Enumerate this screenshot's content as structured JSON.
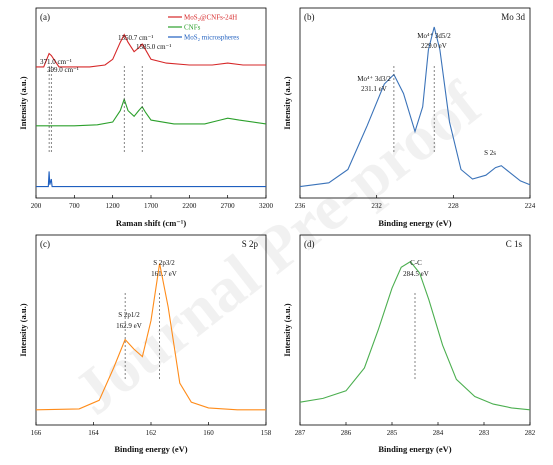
{
  "watermark": "Journal Pre-proof",
  "chart_data": [
    {
      "panel": "(a)",
      "type": "line",
      "xlabel": "Raman shift (cm⁻¹)",
      "ylabel": "Intensity (a.u.)",
      "xlim": [
        200,
        3200
      ],
      "x_ticks": [
        200,
        700,
        1200,
        1700,
        2200,
        2700,
        3200
      ],
      "legend_position": "top-right",
      "series": [
        {
          "name": "MoS₂@CNFs-24H",
          "color": "#d62728",
          "points": [
            [
              200,
              0.69
            ],
            [
              300,
              0.69
            ],
            [
              371,
              0.76
            ],
            [
              399,
              0.75
            ],
            [
              500,
              0.69
            ],
            [
              700,
              0.69
            ],
            [
              900,
              0.69
            ],
            [
              1100,
              0.7
            ],
            [
              1200,
              0.73
            ],
            [
              1300,
              0.82
            ],
            [
              1350.7,
              0.86
            ],
            [
              1400,
              0.82
            ],
            [
              1480,
              0.77
            ],
            [
              1540,
              0.79
            ],
            [
              1585,
              0.81
            ],
            [
              1630,
              0.78
            ],
            [
              1700,
              0.73
            ],
            [
              1900,
              0.71
            ],
            [
              2200,
              0.7
            ],
            [
              2500,
              0.7
            ],
            [
              2700,
              0.71
            ],
            [
              2900,
              0.7
            ],
            [
              3200,
              0.7
            ]
          ]
        },
        {
          "name": "CNFs",
          "color": "#2ca02c",
          "points": [
            [
              200,
              0.38
            ],
            [
              700,
              0.38
            ],
            [
              1000,
              0.385
            ],
            [
              1200,
              0.4
            ],
            [
              1300,
              0.46
            ],
            [
              1350.7,
              0.52
            ],
            [
              1400,
              0.46
            ],
            [
              1480,
              0.43
            ],
            [
              1540,
              0.46
            ],
            [
              1585,
              0.48
            ],
            [
              1630,
              0.45
            ],
            [
              1700,
              0.41
            ],
            [
              2000,
              0.39
            ],
            [
              2400,
              0.39
            ],
            [
              2600,
              0.41
            ],
            [
              2700,
              0.42
            ],
            [
              2850,
              0.41
            ],
            [
              3200,
              0.39
            ]
          ]
        },
        {
          "name": "MoS₂ microspheres",
          "color": "#1f5fbf",
          "points": [
            [
              200,
              0.06
            ],
            [
              360,
              0.06
            ],
            [
              371,
              0.14
            ],
            [
              380,
              0.07
            ],
            [
              399,
              0.1
            ],
            [
              410,
              0.06
            ],
            [
              700,
              0.06
            ],
            [
              1200,
              0.06
            ],
            [
              1700,
              0.06
            ],
            [
              2200,
              0.06
            ],
            [
              2700,
              0.06
            ],
            [
              3200,
              0.06
            ]
          ]
        }
      ],
      "annotations": [
        {
          "text": "371.0 cm⁻¹",
          "x": 371
        },
        {
          "text": "399.0 cm⁻¹",
          "x": 399
        },
        {
          "text": "1350.7 cm⁻¹",
          "x": 1350.7
        },
        {
          "text": "1585.0 cm⁻¹",
          "x": 1585
        }
      ]
    },
    {
      "panel": "(b)",
      "type": "line",
      "title": "Mo 3d",
      "xlabel": "Binding energy (eV)",
      "ylabel": "Intensity (a.u.)",
      "xlim": [
        236,
        224
      ],
      "x_ticks": [
        236,
        232,
        228,
        224
      ],
      "series": [
        {
          "name": "Mo 3d",
          "color": "#3b73b9",
          "points": [
            [
              236,
              0.06
            ],
            [
              234.5,
              0.08
            ],
            [
              233.5,
              0.15
            ],
            [
              232.5,
              0.38
            ],
            [
              231.6,
              0.6
            ],
            [
              231.1,
              0.65
            ],
            [
              230.6,
              0.55
            ],
            [
              230.0,
              0.35
            ],
            [
              229.6,
              0.48
            ],
            [
              229.3,
              0.78
            ],
            [
              229.0,
              0.9
            ],
            [
              228.7,
              0.78
            ],
            [
              228.2,
              0.4
            ],
            [
              227.6,
              0.15
            ],
            [
              227.0,
              0.1
            ],
            [
              226.3,
              0.12
            ],
            [
              225.8,
              0.16
            ],
            [
              225.5,
              0.17
            ],
            [
              225.0,
              0.13
            ],
            [
              224.5,
              0.09
            ],
            [
              224,
              0.07
            ]
          ]
        }
      ],
      "annotations": [
        {
          "text": "Mo⁴⁺ 3d3/2",
          "value": "231.1 eV",
          "x": 231.1
        },
        {
          "text": "Mo⁴⁺ 3d5/2",
          "value": "229.0 eV",
          "x": 229.0
        },
        {
          "text": "S 2s",
          "x": 225.5
        }
      ]
    },
    {
      "panel": "(c)",
      "type": "line",
      "title": "S 2p",
      "xlabel": "Binding energy (eV)",
      "ylabel": "Intensity (a.u.)",
      "xlim": [
        166,
        158
      ],
      "x_ticks": [
        166,
        164,
        162,
        160,
        158
      ],
      "series": [
        {
          "name": "S 2p",
          "color": "#ff8c1a",
          "points": [
            [
              166,
              0.08
            ],
            [
              164.5,
              0.085
            ],
            [
              163.8,
              0.13
            ],
            [
              163.3,
              0.3
            ],
            [
              162.9,
              0.45
            ],
            [
              162.6,
              0.4
            ],
            [
              162.3,
              0.36
            ],
            [
              162.0,
              0.55
            ],
            [
              161.7,
              0.85
            ],
            [
              161.4,
              0.62
            ],
            [
              161.0,
              0.22
            ],
            [
              160.6,
              0.12
            ],
            [
              160.0,
              0.09
            ],
            [
              159,
              0.08
            ],
            [
              158,
              0.08
            ]
          ]
        }
      ],
      "annotations": [
        {
          "text": "S 2p1/2",
          "value": "162.9 eV",
          "x": 162.9
        },
        {
          "text": "S 2p3/2",
          "value": "161.7 eV",
          "x": 161.7
        }
      ]
    },
    {
      "panel": "(d)",
      "type": "line",
      "title": "C 1s",
      "xlabel": "Binding energy (eV)",
      "ylabel": "Intensity (a.u.)",
      "xlim": [
        287,
        282
      ],
      "x_ticks": [
        287,
        286,
        285,
        284,
        283,
        282
      ],
      "series": [
        {
          "name": "C 1s",
          "color": "#4caf50",
          "points": [
            [
              287,
              0.12
            ],
            [
              286.5,
              0.14
            ],
            [
              286.0,
              0.18
            ],
            [
              285.6,
              0.3
            ],
            [
              285.3,
              0.5
            ],
            [
              285.0,
              0.72
            ],
            [
              284.8,
              0.83
            ],
            [
              284.6,
              0.86
            ],
            [
              284.4,
              0.8
            ],
            [
              284.2,
              0.66
            ],
            [
              283.9,
              0.42
            ],
            [
              283.6,
              0.24
            ],
            [
              283.2,
              0.15
            ],
            [
              282.8,
              0.11
            ],
            [
              282.4,
              0.09
            ],
            [
              282,
              0.08
            ]
          ]
        }
      ],
      "annotations": [
        {
          "text": "C-C",
          "value": "284.5 eV",
          "x": 284.5
        }
      ]
    }
  ]
}
